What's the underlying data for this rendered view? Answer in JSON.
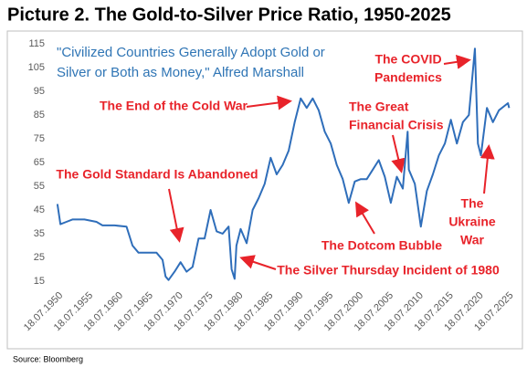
{
  "chart_data": {
    "type": "line",
    "title": "Picture 2. The Gold-to-Silver Price Ratio, 1950-2025",
    "source": "Source: Bloomberg",
    "annotations": [
      {
        "lines": [
          "\"Civilized Countries Generally Adopt Gold or",
          "Silver or Both as Money,\" Alfred Marshall"
        ]
      },
      {
        "lines": [
          "The End of the Cold War"
        ]
      },
      {
        "lines": [
          "The Gold Standard Is Abandoned"
        ]
      },
      {
        "lines": [
          "The Silver Thursday Incident of 1980"
        ]
      },
      {
        "lines": [
          "The Dotcom Bubble"
        ]
      },
      {
        "lines": [
          "The Great",
          "Financial Crisis"
        ]
      },
      {
        "lines": [
          "The COVID",
          "Pandemics"
        ]
      },
      {
        "lines": [
          "The",
          "Ukraine",
          "War"
        ]
      }
    ],
    "x": [
      1950.5,
      1951,
      1952,
      1953,
      1955,
      1957,
      1958,
      1960,
      1962,
      1963,
      1964,
      1967,
      1968,
      1968.5,
      1969,
      1970,
      1971,
      1972,
      1973,
      1974,
      1975,
      1976,
      1977,
      1978,
      1979,
      1979.5,
      1980,
      1980.3,
      1981,
      1982,
      1983,
      1984,
      1985,
      1986,
      1987,
      1988,
      1989,
      1990,
      1991,
      1992,
      1993,
      1994,
      1995,
      1996,
      1997,
      1998,
      1999,
      2000,
      2001,
      2002,
      2003,
      2004,
      2005,
      2006,
      2007,
      2008,
      2008.8,
      2009,
      2010,
      2011,
      2012,
      2013,
      2014,
      2015,
      2016,
      2017,
      2018,
      2019,
      2020,
      2020.5,
      2021,
      2022,
      2023,
      2024,
      2025.5,
      2025.7
    ],
    "series": [
      {
        "color": "#2f6eba",
        "values": [
          47.5,
          39,
          40,
          41,
          41,
          40,
          38.5,
          38.5,
          38,
          30,
          27,
          27,
          24,
          17,
          15.5,
          19,
          23,
          19,
          21,
          33,
          33,
          45,
          36,
          35,
          38,
          20,
          16,
          30,
          37,
          31,
          45,
          50,
          56,
          67,
          60,
          64,
          70,
          82,
          92,
          88,
          92,
          87,
          78,
          73,
          64,
          58,
          48,
          57,
          58,
          58,
          62,
          66,
          59,
          48,
          59,
          54,
          78,
          62,
          56,
          38,
          53,
          60,
          68,
          73,
          83,
          73,
          82,
          85,
          113,
          73,
          68,
          88,
          82,
          87,
          90,
          88
        ]
      }
    ],
    "xlim": [
      1949,
      2027
    ],
    "xticks": [
      {
        "value": 1950.54,
        "label": "18.07.1950"
      },
      {
        "value": 1955.54,
        "label": "18.07.1955"
      },
      {
        "value": 1960.54,
        "label": "18.07.1960"
      },
      {
        "value": 1965.54,
        "label": "18.07.1965"
      },
      {
        "value": 1970.54,
        "label": "18.07.1970"
      },
      {
        "value": 1975.54,
        "label": "18.07.1975"
      },
      {
        "value": 1980.54,
        "label": "18.07.1980"
      },
      {
        "value": 1985.54,
        "label": "18.07.1985"
      },
      {
        "value": 1990.54,
        "label": "18.07.1990"
      },
      {
        "value": 1995.54,
        "label": "18.07.1995"
      },
      {
        "value": 2000.54,
        "label": "18.07.2000"
      },
      {
        "value": 2005.54,
        "label": "18.07.2005"
      },
      {
        "value": 2010.54,
        "label": "18.07.2010"
      },
      {
        "value": 2015.54,
        "label": "18.07.2015"
      },
      {
        "value": 2020.54,
        "label": "18.07.2020"
      },
      {
        "value": 2025.54,
        "label": "18.07.2025"
      }
    ],
    "ylim": [
      15,
      115
    ],
    "yticks": [
      15,
      25,
      35,
      45,
      55,
      65,
      75,
      85,
      95,
      105,
      115
    ]
  }
}
